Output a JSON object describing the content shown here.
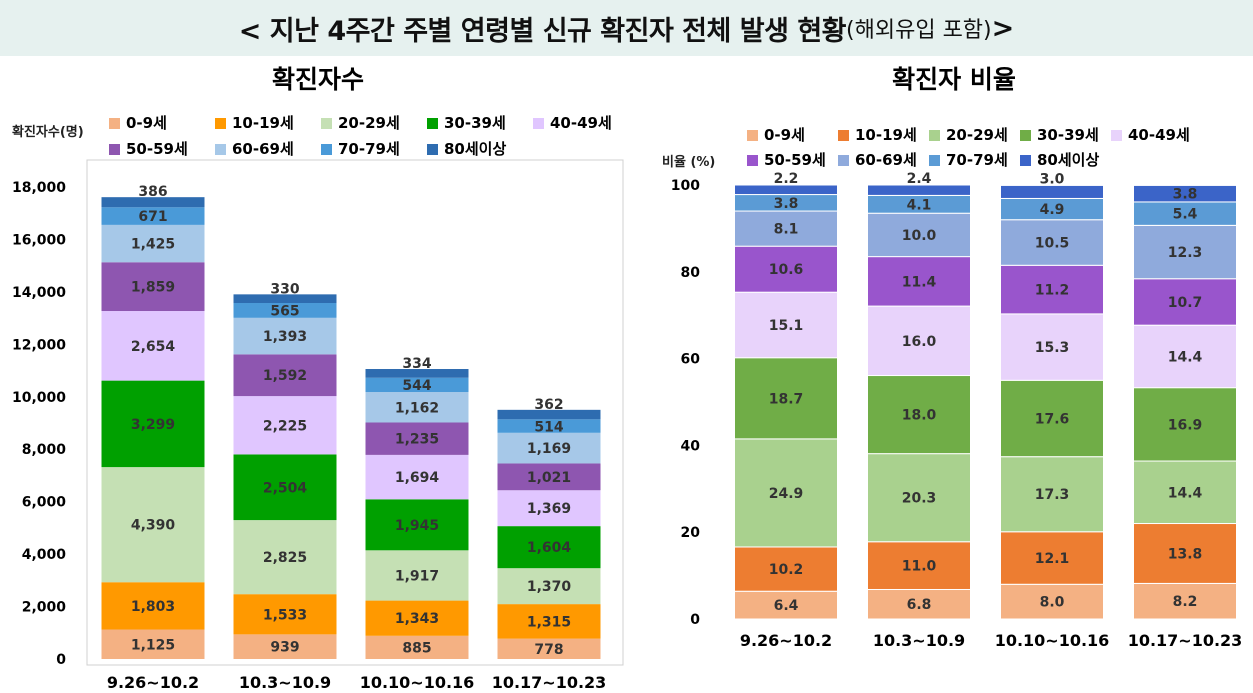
{
  "title": {
    "main": "< 지난 4주간 주별 연령별 신규 확진자 전체 발생 현황",
    "sub": "(해외유입 포함)",
    "end": ">"
  },
  "colors": {
    "0-9세": "#f4b183",
    "10-19세": "#ff9900",
    "20-29세": "#c5e0b4",
    "30-39세": "#00a000",
    "40-49세": "#e0c6ff",
    "50-59세": "#8e56b0",
    "60-69세": "#a6c8e8",
    "70-79세": "#4a9ad8",
    "80세이상": "#2e6cb0"
  },
  "colors_right": {
    "0-9세": "#f4b183",
    "10-19세": "#ed7d31",
    "20-29세": "#a9d18e",
    "30-39세": "#70ad47",
    "40-49세": "#e8d3fb",
    "50-59세": "#9955cc",
    "60-69세": "#8faadc",
    "70-79세": "#5b9bd5",
    "80세이상": "#3b64c8"
  },
  "chart_data": [
    {
      "type": "bar",
      "stacked": true,
      "title": "확진자수",
      "ylabel": "확진자수(명)",
      "ylim": [
        0,
        18000
      ],
      "yticks": [
        "0",
        "2,000",
        "4,000",
        "6,000",
        "8,000",
        "10,000",
        "12,000",
        "14,000",
        "16,000",
        "18,000"
      ],
      "ytick_values": [
        0,
        2000,
        4000,
        6000,
        8000,
        10000,
        12000,
        14000,
        16000,
        18000
      ],
      "categories": [
        "9.26~10.2",
        "10.3~10.9",
        "10.10~10.16",
        "10.17~10.23"
      ],
      "legend": [
        "0-9세",
        "10-19세",
        "20-29세",
        "30-39세",
        "40-49세",
        "50-59세",
        "60-69세",
        "70-79세",
        "80세이상"
      ],
      "series": [
        {
          "name": "0-9세",
          "values": [
            1125,
            939,
            885,
            778
          ],
          "labels": [
            "1,125",
            "939",
            "885",
            "778"
          ]
        },
        {
          "name": "10-19세",
          "values": [
            1803,
            1533,
            1343,
            1315
          ],
          "labels": [
            "1,803",
            "1,533",
            "1,343",
            "1,315"
          ]
        },
        {
          "name": "20-29세",
          "values": [
            4390,
            2825,
            1917,
            1370
          ],
          "labels": [
            "4,390",
            "2,825",
            "1,917",
            "1,370"
          ]
        },
        {
          "name": "30-39세",
          "values": [
            3299,
            2504,
            1945,
            1604
          ],
          "labels": [
            "3,299",
            "2,504",
            "1,945",
            "1,604"
          ]
        },
        {
          "name": "40-49세",
          "values": [
            2654,
            2225,
            1694,
            1369
          ],
          "labels": [
            "2,654",
            "2,225",
            "1,694",
            "1,369"
          ]
        },
        {
          "name": "50-59세",
          "values": [
            1859,
            1592,
            1235,
            1021
          ],
          "labels": [
            "1,859",
            "1,592",
            "1,235",
            "1,021"
          ]
        },
        {
          "name": "60-69세",
          "values": [
            1425,
            1393,
            1162,
            1169
          ],
          "labels": [
            "1,425",
            "1,393",
            "1,162",
            "1,169"
          ]
        },
        {
          "name": "70-79세",
          "values": [
            671,
            565,
            544,
            514
          ],
          "labels": [
            "671",
            "565",
            "544",
            "514"
          ]
        },
        {
          "name": "80세이상",
          "values": [
            386,
            330,
            334,
            362
          ],
          "labels": [
            "386",
            "330",
            "334",
            "362"
          ]
        }
      ]
    },
    {
      "type": "bar",
      "stacked": true,
      "title": "확진자 비율",
      "ylabel": "비율 (%)",
      "ylim": [
        0,
        100
      ],
      "yticks": [
        "0",
        "20",
        "40",
        "60",
        "80",
        "100"
      ],
      "ytick_values": [
        0,
        20,
        40,
        60,
        80,
        100
      ],
      "categories": [
        "9.26~10.2",
        "10.3~10.9",
        "10.10~10.16",
        "10.17~10.23"
      ],
      "legend": [
        "0-9세",
        "10-19세",
        "20-29세",
        "30-39세",
        "40-49세",
        "50-59세",
        "60-69세",
        "70-79세",
        "80세이상"
      ],
      "series": [
        {
          "name": "0-9세",
          "values": [
            6.4,
            6.8,
            8.0,
            8.2
          ],
          "labels": [
            "6.4",
            "6.8",
            "8.0",
            "8.2"
          ]
        },
        {
          "name": "10-19세",
          "values": [
            10.2,
            11.0,
            12.1,
            13.8
          ],
          "labels": [
            "10.2",
            "11.0",
            "12.1",
            "13.8"
          ]
        },
        {
          "name": "20-29세",
          "values": [
            24.9,
            20.3,
            17.3,
            14.4
          ],
          "labels": [
            "24.9",
            "20.3",
            "17.3",
            "14.4"
          ]
        },
        {
          "name": "30-39세",
          "values": [
            18.7,
            18.0,
            17.6,
            16.9
          ],
          "labels": [
            "18.7",
            "18.0",
            "17.6",
            "16.9"
          ]
        },
        {
          "name": "40-49세",
          "values": [
            15.1,
            16.0,
            15.3,
            14.4
          ],
          "labels": [
            "15.1",
            "16.0",
            "15.3",
            "14.4"
          ]
        },
        {
          "name": "50-59세",
          "values": [
            10.6,
            11.4,
            11.2,
            10.7
          ],
          "labels": [
            "10.6",
            "11.4",
            "11.2",
            "10.7"
          ]
        },
        {
          "name": "60-69세",
          "values": [
            8.1,
            10.0,
            10.5,
            12.3
          ],
          "labels": [
            "8.1",
            "10.0",
            "10.5",
            "12.3"
          ]
        },
        {
          "name": "70-79세",
          "values": [
            3.8,
            4.1,
            4.9,
            5.4
          ],
          "labels": [
            "3.8",
            "4.1",
            "4.9",
            "5.4"
          ]
        },
        {
          "name": "80세이상",
          "values": [
            2.2,
            2.4,
            3.0,
            3.8
          ],
          "labels": [
            "2.2",
            "2.4",
            "3.0",
            "3.8"
          ]
        }
      ]
    }
  ]
}
